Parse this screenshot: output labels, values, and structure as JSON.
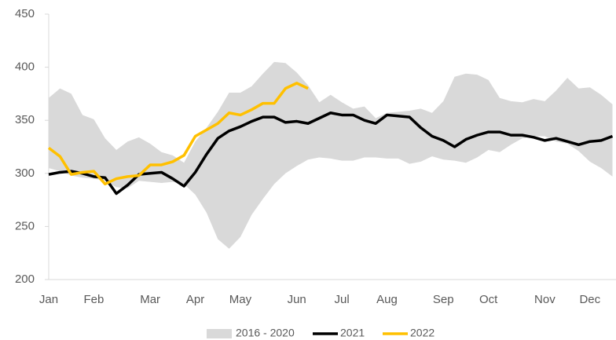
{
  "chart_data": {
    "type": "line",
    "categories": [
      "Jan",
      null,
      null,
      null,
      "Feb",
      null,
      null,
      null,
      null,
      "Mar",
      null,
      null,
      null,
      "Apr",
      null,
      null,
      null,
      "May",
      null,
      null,
      null,
      null,
      "Jun",
      null,
      null,
      null,
      "Jul",
      null,
      null,
      null,
      "Aug",
      null,
      null,
      null,
      null,
      "Sep",
      null,
      null,
      null,
      "Oct",
      null,
      null,
      null,
      null,
      "Nov",
      null,
      null,
      null,
      "Dec",
      null,
      null
    ],
    "band": {
      "name": "2016 - 2020",
      "color": "#d9d9d9",
      "upper": [
        371,
        380,
        375,
        355,
        351,
        333,
        322,
        330,
        334,
        328,
        320,
        317,
        310,
        330,
        343,
        358,
        376,
        376,
        382,
        394,
        405,
        404,
        395,
        383,
        367,
        374,
        367,
        361,
        363,
        352,
        357,
        358,
        359,
        361,
        357,
        368,
        391,
        394,
        393,
        388,
        371,
        368,
        367,
        370,
        368,
        378,
        390,
        380,
        381,
        374,
        365
      ],
      "lower": [
        305,
        302,
        298,
        296,
        295,
        293,
        287,
        286,
        293,
        292,
        291,
        292,
        290,
        280,
        263,
        238,
        229,
        240,
        261,
        276,
        290,
        300,
        307,
        313,
        315,
        314,
        312,
        312,
        315,
        315,
        314,
        314,
        309,
        311,
        316,
        313,
        312,
        310,
        315,
        322,
        320,
        327,
        333,
        335,
        335,
        330,
        328,
        321,
        311,
        305,
        297
      ]
    },
    "series": [
      {
        "name": "2021",
        "color": "#000000",
        "values": [
          299,
          301,
          302,
          300,
          297,
          296,
          281,
          289,
          299,
          300,
          301,
          295,
          288,
          301,
          318,
          333,
          340,
          344,
          349,
          353,
          353,
          348,
          349,
          347,
          352,
          357,
          355,
          355,
          350,
          347,
          355,
          354,
          353,
          343,
          335,
          331,
          325,
          332,
          336,
          339,
          339,
          336,
          336,
          334,
          331,
          333,
          330,
          327,
          330,
          331,
          335
        ]
      },
      {
        "name": "2022",
        "color": "#ffc000",
        "values": [
          324,
          316,
          299,
          301,
          302,
          290,
          295,
          297,
          298,
          308,
          308,
          311,
          317,
          335,
          341,
          347,
          357,
          355,
          360,
          366,
          366,
          380,
          385,
          380,
          null,
          null,
          null,
          null,
          null,
          null,
          null,
          null,
          null,
          null,
          null,
          null,
          null,
          null,
          null,
          null,
          null,
          null,
          null,
          null,
          null,
          null,
          null,
          null,
          null,
          null,
          null
        ]
      }
    ],
    "ylim": [
      200,
      450
    ],
    "yticks": [
      200,
      250,
      300,
      350,
      400,
      450
    ],
    "grid": false,
    "legend": "bottom"
  }
}
